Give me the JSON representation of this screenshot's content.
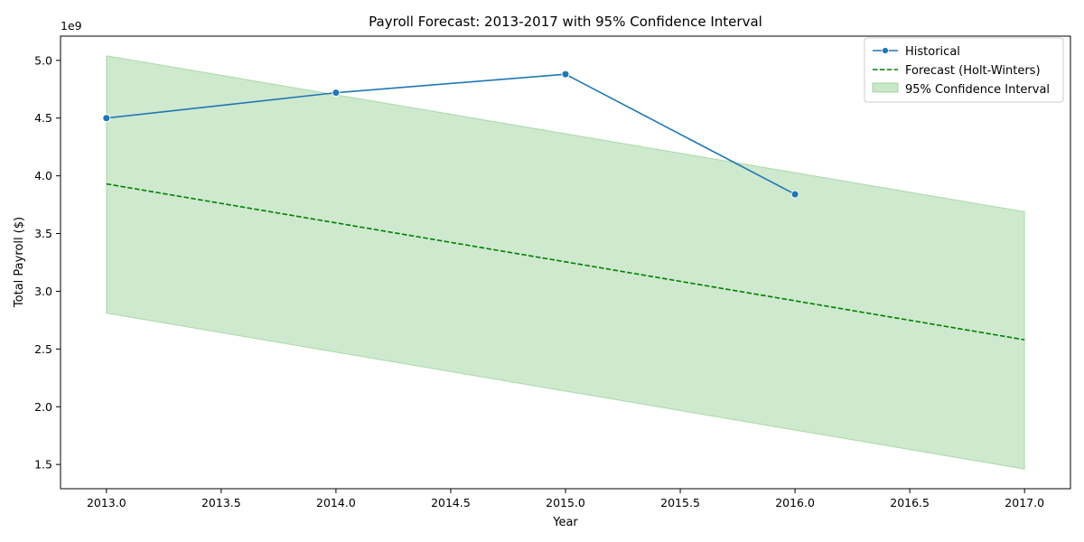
{
  "chart_data": {
    "type": "line",
    "title": "Payroll Forecast: 2013-2017 with 95% Confidence Interval",
    "xlabel": "Year",
    "ylabel": "Total Payroll ($)",
    "y_offset_label": "1e9",
    "xlim": [
      2012.8,
      2017.2
    ],
    "ylim": [
      1.29,
      5.21
    ],
    "x_ticks": [
      2013.0,
      2013.5,
      2014.0,
      2014.5,
      2015.0,
      2015.5,
      2016.0,
      2016.5,
      2017.0
    ],
    "x_tick_labels": [
      "2013.0",
      "2013.5",
      "2014.0",
      "2014.5",
      "2015.0",
      "2015.5",
      "2016.0",
      "2016.5",
      "2017.0"
    ],
    "y_ticks": [
      1.5,
      2.0,
      2.5,
      3.0,
      3.5,
      4.0,
      4.5,
      5.0
    ],
    "y_tick_labels": [
      "1.5",
      "2.0",
      "2.5",
      "3.0",
      "3.5",
      "4.0",
      "4.5",
      "5.0"
    ],
    "grid": false,
    "legend_position": "top-right",
    "series": [
      {
        "name": "Historical",
        "style": "solid-marker",
        "color": "#1f77b4",
        "x": [
          2013,
          2014,
          2015,
          2016
        ],
        "values": [
          4.5,
          4.72,
          4.88,
          3.84
        ]
      },
      {
        "name": "Forecast (Holt-Winters)",
        "style": "dashed",
        "color": "#008000",
        "x": [
          2013,
          2017
        ],
        "values": [
          3.93,
          2.58
        ]
      }
    ],
    "confidence_band": {
      "name": "95% Confidence Interval",
      "color": "#2ca02c",
      "x": [
        2013,
        2017
      ],
      "lower": [
        2.81,
        1.46
      ],
      "upper": [
        5.04,
        3.69
      ]
    }
  }
}
